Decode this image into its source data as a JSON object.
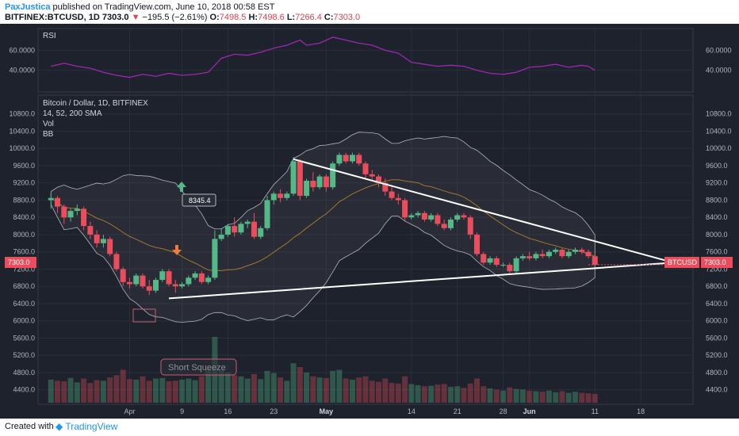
{
  "header": {
    "author": "PaxJustica",
    "published": "published on TradingView.com, June 10, 2018 00:58 EST",
    "symbol": "BITFINEX:BTCUSD, 1D",
    "last": "7303.0",
    "arrow": "▼",
    "change": "−195.5 (−2.61%)",
    "o_label": "O:",
    "o": "7498.5",
    "h_label": "H:",
    "h": "7498.6",
    "l_label": "L:",
    "l": "7266.4",
    "c_label": "C:",
    "c": "7303.0"
  },
  "footer": {
    "created_with": "Created with",
    "brand": "TradingView"
  },
  "legend": {
    "title": "Bitcoin / Dollar, 1D, BITFINEX",
    "ma": "14, 52, 200 SMA",
    "vol": "Vol",
    "bb": "BB"
  },
  "annotations": {
    "price_flag": "8345.4",
    "short_squeeze": "Short Squeeze",
    "last_price_label": "7303.0",
    "symbol_tag": "BTCUSD"
  },
  "colors": {
    "background": "#1e222d",
    "up": "#53b987",
    "down": "#eb4d5c",
    "rsi": "#9c27b0",
    "trendline": "#ffffff",
    "grid": "#2a2e39"
  },
  "chart_data": {
    "type": "candlestick",
    "rsi_label": "RSI",
    "rsi_ticks": [
      "60.0000",
      "40.0000"
    ],
    "rsi_tick_values": [
      60,
      40
    ],
    "price_ticks": [
      "10800.0",
      "10400.0",
      "10000.0",
      "9600.0",
      "9200.0",
      "8800.0",
      "8400.0",
      "8000.0",
      "7600.0",
      "7200.0",
      "6800.0",
      "6400.0",
      "6000.0",
      "5600.0",
      "5200.0",
      "4800.0",
      "4400.0"
    ],
    "price_tick_values": [
      10800,
      10400,
      10000,
      9600,
      9200,
      8800,
      8400,
      8000,
      7600,
      7200,
      6800,
      6400,
      6000,
      5600,
      5200,
      4800,
      4400
    ],
    "x_ticks": [
      "Apr",
      "9",
      "16",
      "23",
      "May",
      "14",
      "21",
      "28",
      "Jun",
      "11",
      "18"
    ],
    "x_tick_days": [
      0,
      8,
      15,
      22,
      30,
      43,
      50,
      57,
      61,
      71,
      78
    ],
    "rsi_ylim": [
      20,
      80
    ],
    "price_ylim": [
      4100,
      11200
    ],
    "candles": [
      [
        -12,
        8800,
        8950,
        8600,
        8850
      ],
      [
        -11,
        8850,
        8900,
        8500,
        8650
      ],
      [
        -10,
        8650,
        8700,
        8250,
        8400
      ],
      [
        -9,
        8400,
        8600,
        8300,
        8550
      ],
      [
        -8,
        8550,
        8700,
        8450,
        8600
      ],
      [
        -7,
        8600,
        8650,
        8100,
        8200
      ],
      [
        -6,
        8200,
        8300,
        7900,
        8000
      ],
      [
        -5,
        8000,
        8100,
        7700,
        7800
      ],
      [
        -4,
        7800,
        8000,
        7700,
        7900
      ],
      [
        -3,
        7900,
        7950,
        7500,
        7550
      ],
      [
        -2,
        7550,
        7600,
        7150,
        7200
      ],
      [
        -1,
        7200,
        7250,
        6800,
        6900
      ],
      [
        0,
        6900,
        7000,
        6750,
        6850
      ],
      [
        1,
        6850,
        7100,
        6800,
        7050
      ],
      [
        2,
        7050,
        7100,
        6750,
        6800
      ],
      [
        3,
        6800,
        6950,
        6600,
        6700
      ],
      [
        4,
        6700,
        7000,
        6650,
        6950
      ],
      [
        5,
        6950,
        7200,
        6900,
        7150
      ],
      [
        6,
        7150,
        7200,
        6800,
        6850
      ],
      [
        7,
        6850,
        6950,
        6650,
        6800
      ],
      [
        8,
        6800,
        6900,
        6750,
        6850
      ],
      [
        9,
        6850,
        7050,
        6800,
        7000
      ],
      [
        10,
        7000,
        7150,
        6950,
        7100
      ],
      [
        11,
        7100,
        7150,
        6850,
        6900
      ],
      [
        12,
        6900,
        7050,
        6850,
        7000
      ],
      [
        13,
        7000,
        8100,
        6950,
        7900
      ],
      [
        14,
        7900,
        8150,
        7850,
        8000
      ],
      [
        15,
        8000,
        8250,
        7950,
        8200
      ],
      [
        16,
        8200,
        8400,
        7950,
        8050
      ],
      [
        17,
        8050,
        8300,
        8000,
        8250
      ],
      [
        18,
        8250,
        8350,
        8150,
        8300
      ],
      [
        19,
        8300,
        8500,
        7900,
        7950
      ],
      [
        20,
        7950,
        8200,
        7900,
        8150
      ],
      [
        21,
        8150,
        8900,
        8100,
        8800
      ],
      [
        22,
        8800,
        9000,
        8700,
        8950
      ],
      [
        23,
        8950,
        9050,
        8750,
        8850
      ],
      [
        24,
        8850,
        9000,
        8800,
        8950
      ],
      [
        25,
        8950,
        9800,
        8900,
        9700
      ],
      [
        26,
        9700,
        9750,
        8800,
        8900
      ],
      [
        27,
        8900,
        9300,
        8850,
        9250
      ],
      [
        28,
        9250,
        9450,
        9000,
        9100
      ],
      [
        29,
        9100,
        9400,
        9050,
        9350
      ],
      [
        30,
        9350,
        9400,
        9000,
        9100
      ],
      [
        31,
        9100,
        9700,
        9050,
        9650
      ],
      [
        32,
        9650,
        9900,
        9600,
        9850
      ],
      [
        33,
        9850,
        9900,
        9650,
        9700
      ],
      [
        34,
        9700,
        9900,
        9650,
        9850
      ],
      [
        35,
        9850,
        9900,
        9600,
        9650
      ],
      [
        36,
        9650,
        9700,
        9300,
        9400
      ],
      [
        37,
        9400,
        9500,
        9250,
        9350
      ],
      [
        38,
        9350,
        9400,
        9100,
        9200
      ],
      [
        39,
        9200,
        9300,
        8900,
        9000
      ],
      [
        40,
        9000,
        9100,
        8800,
        8850
      ],
      [
        41,
        8850,
        8950,
        8700,
        8800
      ],
      [
        42,
        8800,
        8850,
        8300,
        8400
      ],
      [
        43,
        8400,
        8500,
        8350,
        8450
      ],
      [
        44,
        8450,
        8550,
        8400,
        8500
      ],
      [
        45,
        8500,
        8550,
        8300,
        8350
      ],
      [
        46,
        8350,
        8500,
        8300,
        8450
      ],
      [
        47,
        8450,
        8500,
        8200,
        8250
      ],
      [
        48,
        8250,
        8350,
        8100,
        8150
      ],
      [
        49,
        8150,
        8400,
        8100,
        8350
      ],
      [
        50,
        8350,
        8500,
        8300,
        8450
      ],
      [
        51,
        8450,
        8500,
        8350,
        8400
      ],
      [
        52,
        8400,
        8450,
        7900,
        8000
      ],
      [
        53,
        8000,
        8050,
        7500,
        7550
      ],
      [
        54,
        7550,
        7600,
        7300,
        7350
      ],
      [
        55,
        7350,
        7500,
        7300,
        7450
      ],
      [
        56,
        7450,
        7500,
        7250,
        7300
      ],
      [
        57,
        7300,
        7350,
        7250,
        7300
      ],
      [
        58,
        7300,
        7350,
        7100,
        7150
      ],
      [
        59,
        7150,
        7500,
        7100,
        7450
      ],
      [
        60,
        7450,
        7550,
        7400,
        7500
      ],
      [
        61,
        7500,
        7600,
        7400,
        7450
      ],
      [
        62,
        7450,
        7600,
        7400,
        7550
      ],
      [
        63,
        7550,
        7650,
        7450,
        7500
      ],
      [
        64,
        7500,
        7650,
        7450,
        7600
      ],
      [
        65,
        7600,
        7700,
        7550,
        7650
      ],
      [
        66,
        7650,
        7700,
        7450,
        7500
      ],
      [
        67,
        7500,
        7650,
        7450,
        7600
      ],
      [
        68,
        7600,
        7700,
        7550,
        7650
      ],
      [
        69,
        7650,
        7700,
        7550,
        7600
      ],
      [
        70,
        7600,
        7650,
        7450,
        7500
      ],
      [
        71,
        7500,
        7500,
        7270,
        7300
      ]
    ],
    "rsi": [
      [
        -12,
        44
      ],
      [
        -10,
        47
      ],
      [
        -8,
        44
      ],
      [
        -6,
        42
      ],
      [
        -4,
        38
      ],
      [
        -2,
        35
      ],
      [
        0,
        33
      ],
      [
        2,
        36
      ],
      [
        4,
        34
      ],
      [
        6,
        37
      ],
      [
        8,
        35
      ],
      [
        10,
        36
      ],
      [
        12,
        38
      ],
      [
        14,
        52
      ],
      [
        16,
        56
      ],
      [
        18,
        55
      ],
      [
        20,
        58
      ],
      [
        22,
        62
      ],
      [
        24,
        65
      ],
      [
        26,
        70
      ],
      [
        27,
        65
      ],
      [
        29,
        67
      ],
      [
        31,
        73
      ],
      [
        33,
        70
      ],
      [
        35,
        67
      ],
      [
        37,
        65
      ],
      [
        39,
        60
      ],
      [
        41,
        57
      ],
      [
        43,
        48
      ],
      [
        45,
        46
      ],
      [
        47,
        44
      ],
      [
        49,
        45
      ],
      [
        51,
        44
      ],
      [
        53,
        40
      ],
      [
        55,
        37
      ],
      [
        57,
        36
      ],
      [
        59,
        38
      ],
      [
        61,
        43
      ],
      [
        63,
        44
      ],
      [
        65,
        46
      ],
      [
        67,
        43
      ],
      [
        69,
        45
      ],
      [
        70,
        44
      ],
      [
        71,
        40
      ]
    ],
    "volume": [
      [
        -12,
        42
      ],
      [
        -11,
        40
      ],
      [
        -10,
        39
      ],
      [
        -9,
        45
      ],
      [
        -8,
        37
      ],
      [
        -7,
        44
      ],
      [
        -6,
        36
      ],
      [
        -5,
        41
      ],
      [
        -4,
        40
      ],
      [
        -3,
        46
      ],
      [
        -2,
        50
      ],
      [
        -1,
        60
      ],
      [
        0,
        43
      ],
      [
        1,
        42
      ],
      [
        2,
        48
      ],
      [
        3,
        40
      ],
      [
        4,
        44
      ],
      [
        5,
        45
      ],
      [
        6,
        39
      ],
      [
        7,
        40
      ],
      [
        8,
        42
      ],
      [
        9,
        44
      ],
      [
        10,
        41
      ],
      [
        11,
        48
      ],
      [
        12,
        62
      ],
      [
        13,
        120
      ],
      [
        14,
        60
      ],
      [
        15,
        55
      ],
      [
        16,
        50
      ],
      [
        17,
        48
      ],
      [
        18,
        44
      ],
      [
        19,
        52
      ],
      [
        20,
        43
      ],
      [
        21,
        58
      ],
      [
        22,
        54
      ],
      [
        23,
        46
      ],
      [
        24,
        40
      ],
      [
        25,
        72
      ],
      [
        26,
        65
      ],
      [
        27,
        55
      ],
      [
        28,
        48
      ],
      [
        29,
        46
      ],
      [
        30,
        45
      ],
      [
        31,
        58
      ],
      [
        32,
        60
      ],
      [
        33,
        44
      ],
      [
        34,
        42
      ],
      [
        35,
        46
      ],
      [
        36,
        48
      ],
      [
        37,
        40
      ],
      [
        38,
        38
      ],
      [
        39,
        44
      ],
      [
        40,
        36
      ],
      [
        41,
        35
      ],
      [
        42,
        48
      ],
      [
        43,
        34
      ],
      [
        44,
        32
      ],
      [
        45,
        30
      ],
      [
        46,
        31
      ],
      [
        47,
        33
      ],
      [
        48,
        34
      ],
      [
        49,
        29
      ],
      [
        50,
        30
      ],
      [
        51,
        27
      ],
      [
        52,
        35
      ],
      [
        53,
        44
      ],
      [
        54,
        30
      ],
      [
        55,
        26
      ],
      [
        56,
        24
      ],
      [
        57,
        22
      ],
      [
        58,
        28
      ],
      [
        59,
        25
      ],
      [
        60,
        24
      ],
      [
        61,
        22
      ],
      [
        62,
        21
      ],
      [
        63,
        20
      ],
      [
        64,
        22
      ],
      [
        65,
        19
      ],
      [
        66,
        21
      ],
      [
        67,
        18
      ],
      [
        68,
        20
      ],
      [
        69,
        18
      ],
      [
        70,
        17
      ],
      [
        71,
        16
      ]
    ],
    "trendlines": [
      {
        "from": [
          25,
          9750
        ],
        "to": [
          83,
          7350
        ]
      },
      {
        "from": [
          6,
          6520
        ],
        "to": [
          83,
          7350
        ]
      }
    ]
  }
}
